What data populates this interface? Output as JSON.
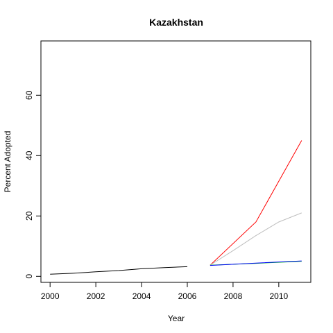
{
  "chart_data": {
    "type": "line",
    "title": "Kazakhstan",
    "xlabel": "Year",
    "ylabel": "Percent Adopted",
    "xlim": [
      1999.6,
      2011.4
    ],
    "ylim": [
      -2,
      78
    ],
    "xticks": [
      2000,
      2002,
      2004,
      2006,
      2008,
      2010
    ],
    "yticks": [
      0,
      20,
      40,
      60
    ],
    "grid": false,
    "series": [
      {
        "color": "#000000",
        "x": [
          2000,
          2001,
          2002,
          2003,
          2004,
          2005,
          2006
        ],
        "y": [
          0.7,
          1.0,
          1.5,
          1.9,
          2.5,
          2.9,
          3.2
        ]
      },
      {
        "color": "#ff0000",
        "x": [
          2007,
          2009,
          2011
        ],
        "y": [
          3.7,
          18.0,
          45.0
        ]
      },
      {
        "color": "#bebebe",
        "x": [
          2007,
          2008,
          2009,
          2010,
          2011
        ],
        "y": [
          3.7,
          8.5,
          13.5,
          18.0,
          21.0
        ]
      },
      {
        "color": "#00cd00",
        "x": [
          2007,
          2009,
          2011
        ],
        "y": [
          3.7,
          4.3,
          5.0
        ]
      },
      {
        "color": "#0000ff",
        "x": [
          2007,
          2009,
          2011
        ],
        "y": [
          3.6,
          4.4,
          5.1
        ]
      }
    ]
  }
}
